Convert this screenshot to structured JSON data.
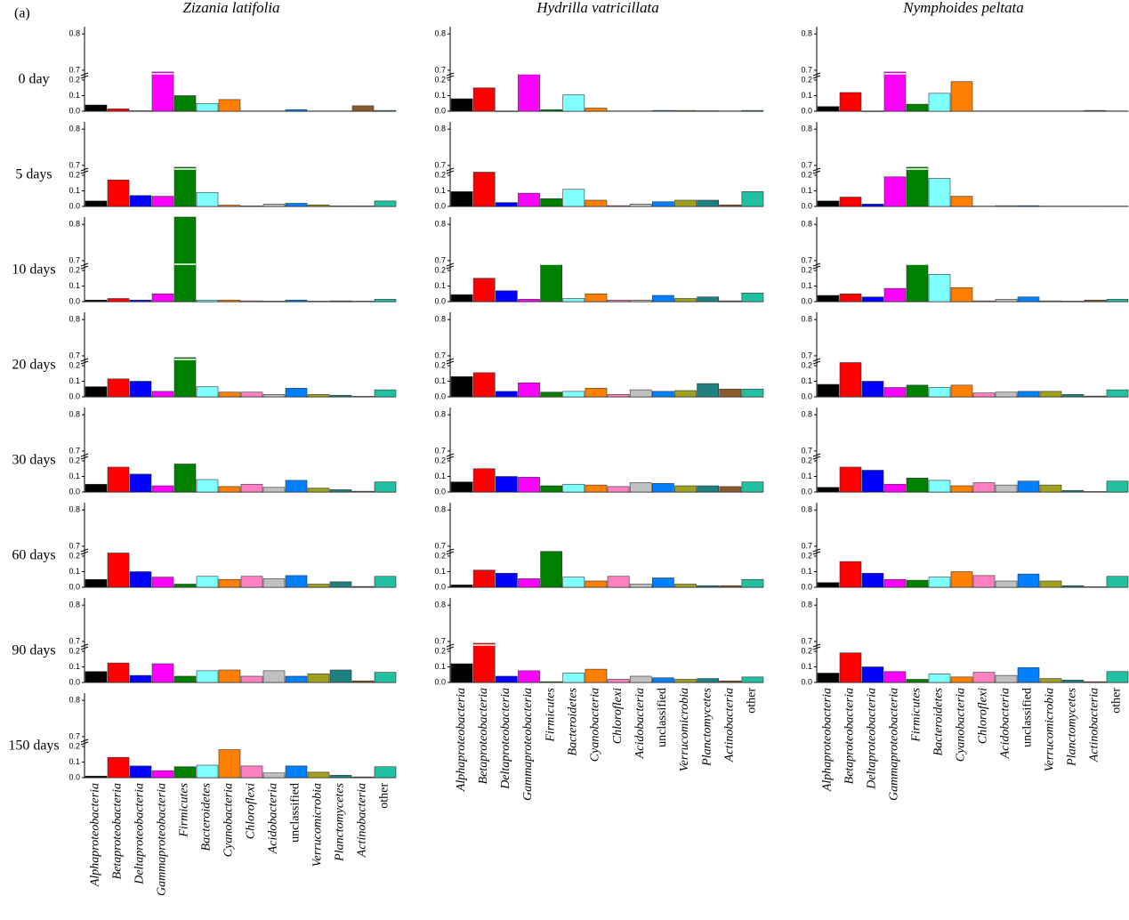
{
  "label": "(a)",
  "rows": [
    "0 day",
    "5 days",
    "10 days",
    "20 days",
    "30 days",
    "60 days",
    "90 days",
    "150 days"
  ],
  "chart_data": [
    {
      "type": "bar",
      "title": "Zizania latifolia",
      "categories": [
        "Alphaproteobacteria",
        "Betaproteobacteria",
        "Deltaproteobacteria",
        "Gammaproteobacteria",
        "Firmicutes",
        "Bacteroidetes",
        "Cyanobacteria",
        "Chloroflexi",
        "Acidobacteria",
        "unclassified",
        "Verrucomicrobia",
        "Planctomycetes",
        "Actinobacteria",
        "other"
      ],
      "colors": [
        "#000000",
        "#ff0000",
        "#0000ff",
        "#ff00ff",
        "#008000",
        "#80ffff",
        "#ff8000",
        "#ff80c0",
        "#c0c0c0",
        "#0080ff",
        "#a0a020",
        "#208080",
        "#8b5a2b",
        "#20c0a0"
      ],
      "ylim": [
        0,
        0.82
      ],
      "ybreak": [
        0.24,
        0.69
      ],
      "yticks": [
        {
          "value": 0,
          "label": "0.0"
        },
        0.1,
        0.2,
        0.7,
        0.8
      ],
      "panels": [
        [
          0.04,
          0.015,
          0.003,
          0.695,
          0.1,
          0.05,
          0.075,
          0.002,
          0.002,
          0.01,
          0.002,
          0.002,
          0.035,
          0.005
        ],
        [
          0.035,
          0.17,
          0.07,
          0.065,
          0.695,
          0.09,
          0.008,
          0.003,
          0.015,
          0.02,
          0.01,
          0.003,
          0.003,
          0.035
        ],
        [
          0.01,
          0.02,
          0.01,
          0.05,
          0.82,
          0.01,
          0.01,
          0.005,
          0.003,
          0.01,
          0.003,
          0.005,
          0.003,
          0.015
        ],
        [
          0.065,
          0.115,
          0.1,
          0.035,
          0.695,
          0.065,
          0.03,
          0.03,
          0.015,
          0.055,
          0.015,
          0.01,
          0.003,
          0.045
        ],
        [
          0.05,
          0.16,
          0.115,
          0.04,
          0.18,
          0.08,
          0.035,
          0.05,
          0.03,
          0.075,
          0.025,
          0.015,
          0.005,
          0.065
        ],
        [
          0.05,
          0.22,
          0.1,
          0.065,
          0.02,
          0.07,
          0.05,
          0.07,
          0.055,
          0.075,
          0.02,
          0.035,
          0.005,
          0.07
        ],
        [
          0.07,
          0.125,
          0.045,
          0.12,
          0.04,
          0.075,
          0.08,
          0.04,
          0.075,
          0.04,
          0.055,
          0.08,
          0.01,
          0.065
        ],
        [
          0.01,
          0.13,
          0.075,
          0.045,
          0.07,
          0.08,
          0.18,
          0.075,
          0.03,
          0.075,
          0.035,
          0.015,
          0.005,
          0.07
        ]
      ]
    },
    {
      "type": "bar",
      "title": "Hydrilla vatricillata",
      "categories": [
        "Alphaproteobacteria",
        "Betaproteobacteria",
        "Deltaproteobacteria",
        "Gammaproteobacteria",
        "Firmicutes",
        "Bacteroidetes",
        "Cyanobacteria",
        "Chloroflexi",
        "Acidobacteria",
        "unclassified",
        "Verrucomicrobia",
        "Planctomycetes",
        "Actinobacteria",
        "other"
      ],
      "colors": [
        "#000000",
        "#ff0000",
        "#0000ff",
        "#ff00ff",
        "#008000",
        "#80ffff",
        "#ff8000",
        "#ff80c0",
        "#c0c0c0",
        "#0080ff",
        "#a0a020",
        "#208080",
        "#8b5a2b",
        "#20c0a0"
      ],
      "ylim": [
        0,
        0.82
      ],
      "ybreak": [
        0.24,
        0.69
      ],
      "yticks": [
        {
          "value": 0,
          "label": "0.0"
        },
        0.1,
        0.2,
        0.7,
        0.8
      ],
      "panels": [
        [
          0.08,
          0.15,
          0,
          0.69,
          0.01,
          0.105,
          0.02,
          0.002,
          0.002,
          0.005,
          0.005,
          0.003,
          0.002,
          0.005
        ],
        [
          0.095,
          0.22,
          0.025,
          0.085,
          0.05,
          0.11,
          0.04,
          0.005,
          0.015,
          0.03,
          0.04,
          0.04,
          0.01,
          0.095
        ],
        [
          0.045,
          0.15,
          0.07,
          0.015,
          0.69,
          0.02,
          0.05,
          0.01,
          0.01,
          0.04,
          0.02,
          0.03,
          0.005,
          0.055
        ],
        [
          0.13,
          0.155,
          0.035,
          0.09,
          0.03,
          0.035,
          0.055,
          0.015,
          0.045,
          0.035,
          0.04,
          0.085,
          0.05,
          0.05
        ],
        [
          0.065,
          0.15,
          0.1,
          0.095,
          0.04,
          0.05,
          0.045,
          0.035,
          0.06,
          0.055,
          0.04,
          0.04,
          0.035,
          0.065
        ],
        [
          0.015,
          0.11,
          0.09,
          0.055,
          0.23,
          0.065,
          0.04,
          0.07,
          0.02,
          0.06,
          0.02,
          0.01,
          0.01,
          0.05
        ],
        [
          0.12,
          0.695,
          0.04,
          0.075,
          0.005,
          0.06,
          0.085,
          0.02,
          0.04,
          0.03,
          0.02,
          0.025,
          0.01,
          0.035
        ]
      ]
    },
    {
      "type": "bar",
      "title": "Nymphoides peltata",
      "categories": [
        "Alphaproteobacteria",
        "Betaproteobacteria",
        "Deltaproteobacteria",
        "Gammaproteobacteria",
        "Firmicutes",
        "Bacteroidetes",
        "Cyanobacteria",
        "Chloroflexi",
        "Acidobacteria",
        "unclassified",
        "Verrucomicrobia",
        "Planctomycetes",
        "Actinobacteria",
        "other"
      ],
      "colors": [
        "#000000",
        "#ff0000",
        "#0000ff",
        "#ff00ff",
        "#008000",
        "#80ffff",
        "#ff8000",
        "#ff80c0",
        "#c0c0c0",
        "#0080ff",
        "#a0a020",
        "#208080",
        "#8b5a2b",
        "#20c0a0"
      ],
      "ylim": [
        0,
        0.82
      ],
      "ybreak": [
        0.24,
        0.69
      ],
      "yticks": [
        {
          "value": 0,
          "label": "0.0"
        },
        0.1,
        0.2,
        0.7,
        0.8
      ],
      "panels": [
        [
          0.03,
          0.12,
          0,
          0.695,
          0.045,
          0.115,
          0.19,
          0.002,
          0.002,
          0.002,
          0.002,
          0.002,
          0.005,
          0.002
        ],
        [
          0.035,
          0.06,
          0.015,
          0.19,
          0.695,
          0.18,
          0.065,
          0.002,
          0.005,
          0.005,
          0.002,
          0.002,
          0.002,
          0.002
        ],
        [
          0.04,
          0.05,
          0.03,
          0.085,
          0.69,
          0.175,
          0.09,
          0.005,
          0.015,
          0.03,
          0.005,
          0.003,
          0.01,
          0.015
        ],
        [
          0.08,
          0.22,
          0.1,
          0.06,
          0.075,
          0.06,
          0.075,
          0.025,
          0.03,
          0.035,
          0.035,
          0.015,
          0.005,
          0.045
        ],
        [
          0.03,
          0.16,
          0.14,
          0.05,
          0.09,
          0.075,
          0.04,
          0.06,
          0.045,
          0.07,
          0.045,
          0.01,
          0.003,
          0.07
        ],
        [
          0.03,
          0.165,
          0.09,
          0.05,
          0.045,
          0.065,
          0.1,
          0.075,
          0.04,
          0.085,
          0.04,
          0.01,
          0.003,
          0.07
        ],
        [
          0.06,
          0.19,
          0.1,
          0.07,
          0.02,
          0.055,
          0.035,
          0.065,
          0.045,
          0.095,
          0.025,
          0.015,
          0.005,
          0.07
        ]
      ]
    }
  ]
}
